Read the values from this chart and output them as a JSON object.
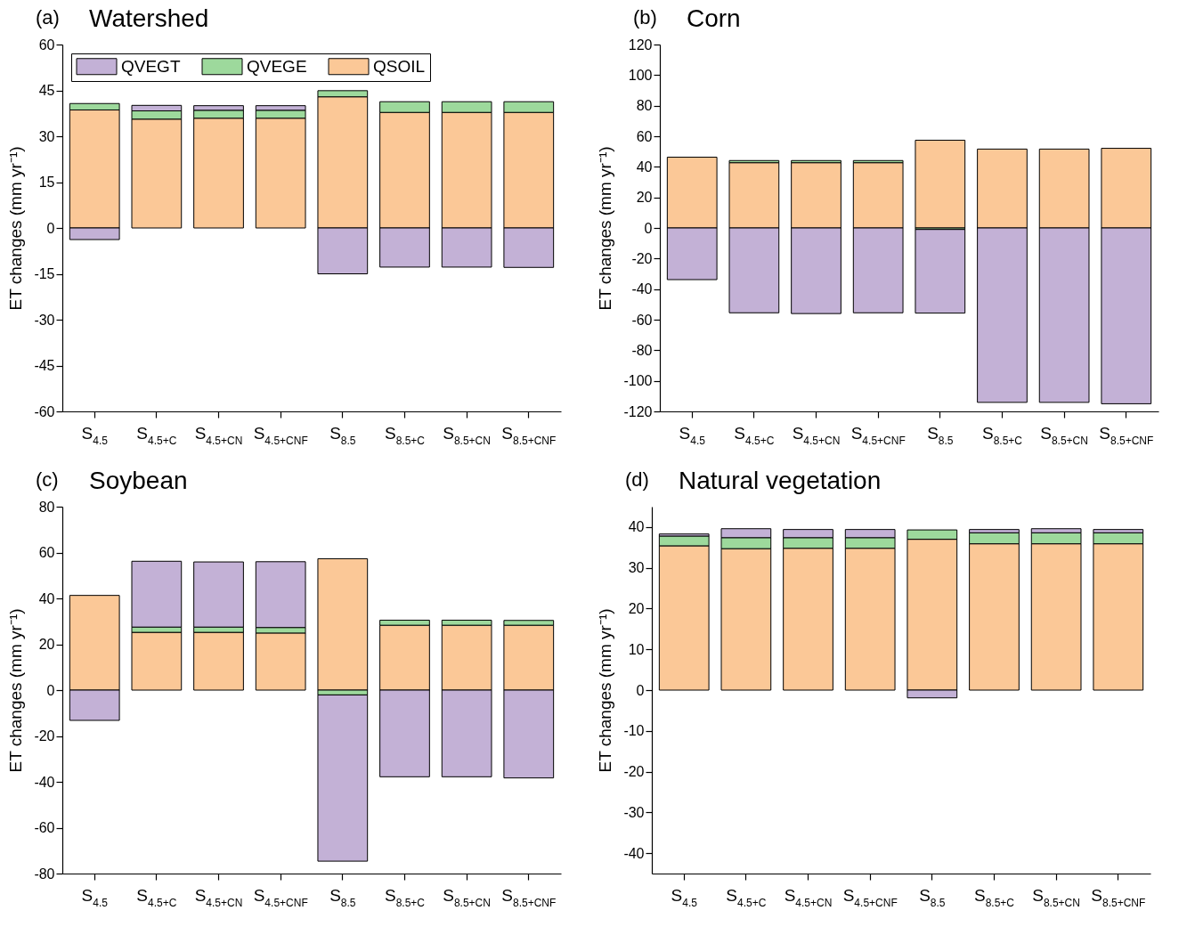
{
  "chart_data": [
    {
      "type": "bar",
      "stacked": true,
      "title": "Watershed",
      "annotations": [
        "(a)"
      ],
      "ylabel": "ET changes (mm yr⁻¹)",
      "legend": "top left",
      "categories": [
        "S$_{4.5}$",
        "S$_{4.5+C}$",
        "S$_{4.5+CN}$",
        "S$_{4.5+CNF}$",
        "S$_{8.5}$",
        "S$_{8.5+C}$",
        "S$_{8.5+CN}$",
        "S$_{8.5+CNF}$"
      ],
      "series": [
        {
          "name": "QSOIL",
          "color": "#fbc897",
          "values": [
            38.6,
            35.6,
            35.9,
            35.9,
            42.9,
            37.8,
            37.8,
            37.8
          ]
        },
        {
          "name": "QVEGE",
          "color": "#9dd99c",
          "values": [
            2.1,
            2.7,
            2.6,
            2.6,
            2.0,
            3.5,
            3.5,
            3.5
          ]
        },
        {
          "name": "QVEGT",
          "color": "#c3b1d6",
          "values": [
            -3.8,
            1.8,
            1.5,
            1.5,
            -15.0,
            -12.8,
            -12.8,
            -12.9
          ]
        }
      ],
      "ylim": [
        -60,
        60
      ],
      "yticks": [
        -60,
        -45,
        -30,
        -15,
        0,
        15,
        30,
        45,
        60
      ]
    },
    {
      "type": "bar",
      "stacked": true,
      "title": "Corn",
      "annotations": [
        "(b)"
      ],
      "ylabel": "ET changes (mm yr⁻¹)",
      "categories": [
        "S$_{4.5}$",
        "S$_{4.5+C}$",
        "S$_{4.5+CN}$",
        "S$_{4.5+CNF}$",
        "S$_{8.5}$",
        "S$_{8.5+C}$",
        "S$_{8.5+CN}$",
        "S$_{8.5+CNF}$"
      ],
      "series": [
        {
          "color": "#fbc897",
          "values": [
            46.3,
            42.7,
            42.7,
            42.7,
            57.4,
            51.6,
            51.6,
            52.1
          ]
        },
        {
          "color": "#9dd99c",
          "values": [
            null,
            1.4,
            1.4,
            1.4,
            -1.0,
            null,
            null,
            null
          ]
        },
        {
          "color": "#c3b1d6",
          "values": [
            -33.8,
            -55.5,
            -56.0,
            -55.5,
            -54.7,
            -114.1,
            -114.1,
            -115.0
          ]
        }
      ],
      "ylim": [
        -120,
        120
      ],
      "yticks": [
        -120,
        -100,
        -80,
        -60,
        -40,
        -20,
        0,
        20,
        40,
        60,
        80,
        100,
        120
      ]
    },
    {
      "type": "bar",
      "stacked": true,
      "title": "Soybean",
      "annotations": [
        "(c)"
      ],
      "ylabel": "ET changes (mm yr⁻¹)",
      "categories": [
        "S$_{4.5}$",
        "S$_{4.5+C}$",
        "S$_{4.5+CN}$",
        "S$_{4.5+CNF}$",
        "S$_{8.5}$",
        "S$_{8.5+C}$",
        "S$_{8.5+CN}$",
        "S$_{8.5+CNF}$"
      ],
      "series": [
        {
          "color": "#fbc897",
          "values": [
            41.3,
            25.2,
            25.2,
            24.9,
            57.3,
            28.3,
            28.3,
            28.3
          ]
        },
        {
          "color": "#9dd99c",
          "values": [
            null,
            2.3,
            2.3,
            2.4,
            -2.1,
            2.2,
            2.2,
            2.1
          ]
        },
        {
          "color": "#c3b1d6",
          "values": [
            -13.2,
            28.7,
            28.4,
            28.7,
            -72.5,
            -37.8,
            -37.8,
            -38.3
          ]
        }
      ],
      "ylim": [
        -80,
        80
      ],
      "yticks": [
        -80,
        -60,
        -40,
        -20,
        0,
        20,
        40,
        60,
        80
      ]
    },
    {
      "type": "bar",
      "stacked": true,
      "title": "Natural vegetation",
      "annotations": [
        "(d)"
      ],
      "ylabel": "ET changes (mm yr⁻¹)",
      "categories": [
        "S$_{4.5}$",
        "S$_{4.5+C}$",
        "S$_{4.5+CN}$",
        "S$_{4.5+CNF}$",
        "S$_{8.5}$",
        "S$_{8.5+C}$",
        "S$_{8.5+CN}$",
        "S$_{8.5+CNF}$"
      ],
      "series": [
        {
          "color": "#fbc897",
          "values": [
            35.4,
            34.7,
            34.8,
            34.8,
            37.0,
            35.9,
            35.9,
            35.9
          ]
        },
        {
          "color": "#9dd99c",
          "values": [
            2.4,
            2.7,
            2.6,
            2.6,
            2.3,
            2.7,
            2.7,
            2.7
          ]
        },
        {
          "color": "#c3b1d6",
          "values": [
            0.5,
            2.2,
            2.0,
            2.0,
            -1.9,
            0.8,
            1.0,
            0.8
          ]
        }
      ],
      "ylim": [
        -45,
        45
      ],
      "yticks": [
        -40,
        -30,
        -20,
        -10,
        0,
        10,
        20,
        30,
        40
      ]
    }
  ]
}
